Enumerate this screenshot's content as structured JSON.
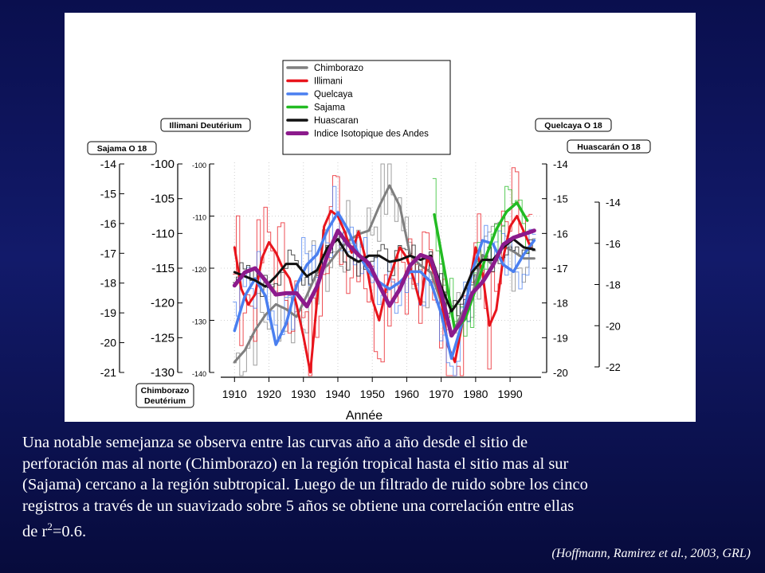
{
  "caption": {
    "line1": "Una notable semejanza se observa entre las curvas año a año desde el sitio de",
    "line2": "perforación mas al norte (Chimborazo) en la región tropical hasta el sitio mas al sur",
    "line3": "(Sajama) cercano a la región subtropical. Luego de un filtrado de ruido sobre los cinco",
    "line4": "registros a través de un suavizado sobre 5 años se obtiene una correlación entre ellas",
    "line5_prefix": "de  r",
    "line5_sup": "2",
    "line5_suffix": "=0.6."
  },
  "citation": "(Hoffmann, Ramirez et al., 2003, GRL)",
  "colors": {
    "background": "#0a0f4e",
    "Chimborazo": "#7f7f7f",
    "Illimani": "#e8141c",
    "Quelcaya": "#4a7ff0",
    "Sajama": "#22bb22",
    "Huascaran": "#111111",
    "Indice": "#8c1a8c"
  },
  "chart_data": {
    "type": "line",
    "xlabel": "Année",
    "x_ticks": [
      "1910",
      "1920",
      "1930",
      "1940",
      "1950",
      "1960",
      "1970",
      "1980",
      "1990"
    ],
    "xlim": [
      1906,
      1999
    ],
    "legend": {
      "position": "top-center",
      "entries": [
        "Chimborazo",
        "Illimani",
        "Quelcaya",
        "Sajama",
        "Huascaran",
        "Indice Isotopique des Andes"
      ]
    },
    "axis_labels": {
      "sajama": "Sajama O 18",
      "chimborazo_line1": "Chimborazo",
      "chimborazo_line2": "Deutérium",
      "illimani": "Illimani Deutérium",
      "quelcaya": "Quelcaya O 18",
      "huascaran": "Huascarán O 18"
    },
    "axes": {
      "sajama": {
        "side": "left",
        "ticks": [
          "-14",
          "-15",
          "-16",
          "-17",
          "-18",
          "-19",
          "-20",
          "-21"
        ]
      },
      "chimborazo": {
        "side": "left",
        "ticks": [
          "-100",
          "-105",
          "-110",
          "-115",
          "-120",
          "-125",
          "-130"
        ]
      },
      "illimani": {
        "side": "left",
        "ticks": [
          "-100",
          "-110",
          "-120",
          "-130",
          "-140"
        ]
      },
      "quelcaya": {
        "side": "right",
        "ticks": [
          "-14",
          "-15",
          "-16",
          "-17",
          "-18",
          "-19",
          "-20"
        ]
      },
      "huascaran": {
        "side": "right",
        "ticks": [
          "-14",
          "-16",
          "-18",
          "-20",
          "-22"
        ]
      }
    },
    "series": [
      {
        "name": "Chimborazo",
        "axis": "chimborazo",
        "x": [
          1910,
          1913,
          1916,
          1919,
          1922,
          1925,
          1928,
          1931,
          1934,
          1937,
          1940,
          1943,
          1946,
          1949,
          1952,
          1955,
          1958,
          1961,
          1964,
          1967,
          1970,
          1973,
          1976,
          1979,
          1982,
          1985,
          1988,
          1991,
          1994,
          1997
        ],
        "y": [
          -128.5,
          -126.8,
          -123.9,
          -121.7,
          -120.2,
          -120.9,
          -122.0,
          -118.9,
          -115.6,
          -114.6,
          -112.6,
          -111.1,
          -110.1,
          -109.6,
          -106.1,
          -103.1,
          -106.1,
          -113.1,
          -114.6,
          -115.6,
          -119.9,
          -124.7,
          -121.5,
          -118.9,
          -113.1,
          -114.6,
          -111.8,
          -112.6,
          -113.6,
          -113.6
        ]
      },
      {
        "name": "Illimani",
        "axis": "illimani",
        "x": [
          1910,
          1912,
          1914,
          1916,
          1918,
          1920,
          1922,
          1924,
          1926,
          1928,
          1930,
          1932,
          1934,
          1936,
          1938,
          1940,
          1942,
          1944,
          1946,
          1948,
          1950,
          1952,
          1954,
          1956,
          1958,
          1960,
          1962,
          1964,
          1966,
          1968,
          1970,
          1972,
          1974,
          1976,
          1978,
          1980,
          1982,
          1984,
          1986,
          1988,
          1990,
          1992,
          1994,
          1996
        ],
        "y": [
          -116,
          -124,
          -127,
          -125,
          -118,
          -115,
          -117,
          -120,
          -122,
          -127,
          -133,
          -140,
          -126,
          -112,
          -109,
          -110,
          -113,
          -117,
          -113,
          -118,
          -126,
          -130,
          -124,
          -120,
          -116,
          -118,
          -122,
          -127,
          -118,
          -121,
          -126,
          -135,
          -138,
          -131,
          -124,
          -116,
          -121,
          -131,
          -128,
          -118,
          -112,
          -110,
          -113,
          -116
        ]
      },
      {
        "name": "Quelcaya",
        "axis": "quelcaya",
        "x": [
          1910,
          1913,
          1916,
          1919,
          1922,
          1925,
          1928,
          1931,
          1934,
          1937,
          1940,
          1943,
          1946,
          1949,
          1952,
          1955,
          1958,
          1961,
          1964,
          1967,
          1970,
          1973,
          1976,
          1979,
          1982,
          1985,
          1988,
          1991,
          1994,
          1997
        ],
        "y": [
          -18.8,
          -17.8,
          -17.3,
          -17.8,
          -19.2,
          -18.6,
          -17.5,
          -16.9,
          -16.6,
          -15.9,
          -15.4,
          -15.9,
          -16.6,
          -17.1,
          -17.4,
          -17.6,
          -17.4,
          -17.1,
          -17.1,
          -17.4,
          -18.3,
          -19.6,
          -18.6,
          -17.1,
          -16.2,
          -16.3,
          -16.9,
          -17.1,
          -16.6,
          -16.2
        ]
      },
      {
        "name": "Sajama",
        "axis": "sajama",
        "x": [
          1968,
          1971,
          1974,
          1977,
          1980,
          1983,
          1986,
          1989,
          1992,
          1995
        ],
        "y": [
          -15.7,
          -17.6,
          -19.6,
          -19.2,
          -18.2,
          -17.1,
          -16.2,
          -15.6,
          -15.3,
          -15.9
        ]
      },
      {
        "name": "Huascaran",
        "axis": "huascaran",
        "x": [
          1910,
          1913,
          1916,
          1919,
          1922,
          1925,
          1928,
          1931,
          1934,
          1937,
          1940,
          1943,
          1946,
          1949,
          1952,
          1955,
          1958,
          1961,
          1964,
          1967,
          1970,
          1973,
          1976,
          1979,
          1982,
          1985,
          1988,
          1991,
          1994,
          1997
        ],
        "y": [
          -17.4,
          -17.6,
          -17.8,
          -18.1,
          -17.6,
          -17.0,
          -17.0,
          -17.6,
          -17.3,
          -16.2,
          -15.8,
          -16.6,
          -16.9,
          -16.6,
          -16.6,
          -16.9,
          -16.8,
          -16.6,
          -16.8,
          -16.6,
          -18.1,
          -19.3,
          -18.6,
          -17.4,
          -16.8,
          -16.8,
          -16.2,
          -15.8,
          -16.2,
          -16.3
        ]
      },
      {
        "name": "Indice Isotopique des Andes",
        "axis": "chimborazo",
        "x": [
          1910,
          1913,
          1916,
          1919,
          1922,
          1925,
          1928,
          1931,
          1934,
          1937,
          1940,
          1943,
          1946,
          1949,
          1952,
          1955,
          1958,
          1961,
          1964,
          1967,
          1970,
          1973,
          1976,
          1979,
          1982,
          1985,
          1988,
          1991,
          1994,
          1997
        ],
        "y": [
          -117.5,
          -115.6,
          -115.0,
          -116.8,
          -118.8,
          -118.6,
          -118.6,
          -120.5,
          -117.6,
          -113.1,
          -109.6,
          -111.6,
          -113.1,
          -114.3,
          -117.4,
          -120.4,
          -118.0,
          -114.6,
          -113.1,
          -113.6,
          -118.5,
          -124.7,
          -122.5,
          -118.6,
          -117.0,
          -114.6,
          -111.6,
          -110.6,
          -110.1,
          -109.6
        ]
      }
    ]
  }
}
